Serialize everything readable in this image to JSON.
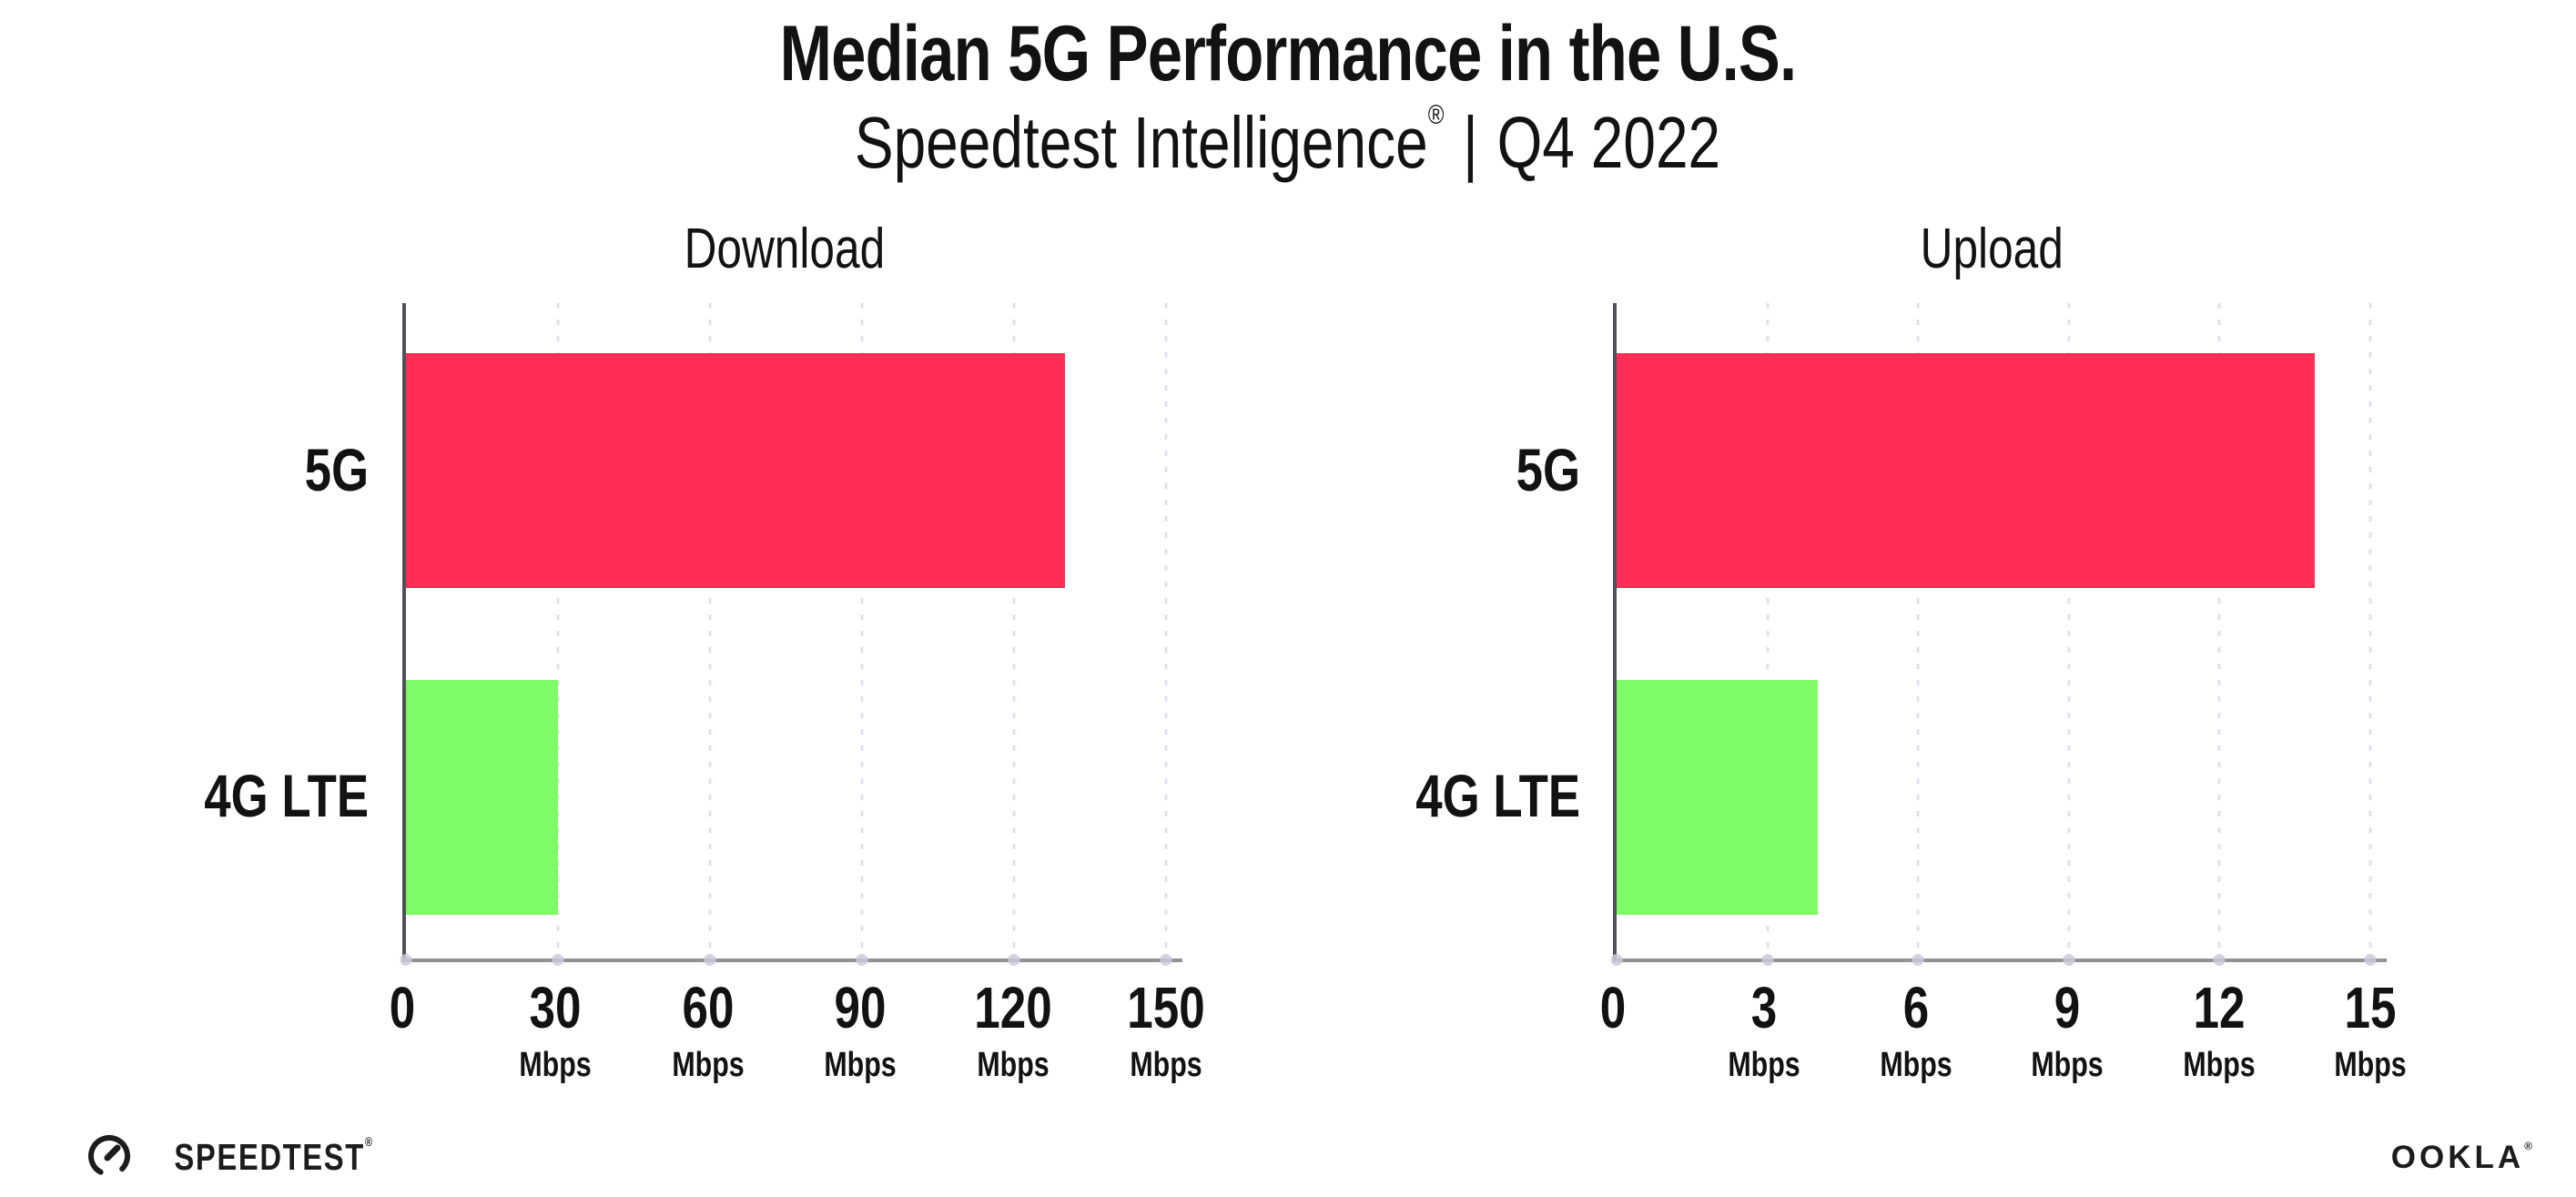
{
  "page": {
    "title": "Median 5G Performance in the U.S.",
    "subtitle_brand": "Speedtest Intelligence",
    "subtitle_reg": "®",
    "subtitle_sep": "|",
    "subtitle_period": "Q4 2022"
  },
  "colors": {
    "bar_5g": "#FF2E56",
    "bar_4g_lte": "#7DFC66",
    "gridline": "#E1E1EC",
    "x_axis": "#909096",
    "y_axis": "#50505A",
    "text": "#121212"
  },
  "chart_data": [
    {
      "type": "bar",
      "orientation": "horizontal",
      "title": "Download",
      "categories": [
        "5G",
        "4G LTE"
      ],
      "values": [
        130,
        30
      ],
      "unit": "Mbps",
      "xlim": [
        0,
        150
      ],
      "ticks": [
        0,
        30,
        60,
        90,
        120,
        150
      ],
      "tick_unit": "Mbps",
      "bar_colors": [
        "#FF2E56",
        "#7DFC66"
      ],
      "grid": "dotted-vertical",
      "legend": "none"
    },
    {
      "type": "bar",
      "orientation": "horizontal",
      "title": "Upload",
      "categories": [
        "5G",
        "4G LTE"
      ],
      "values": [
        13.9,
        4.0
      ],
      "unit": "Mbps",
      "xlim": [
        0,
        15
      ],
      "ticks": [
        0,
        3,
        6,
        9,
        12,
        15
      ],
      "tick_unit": "Mbps",
      "bar_colors": [
        "#FF2E56",
        "#7DFC66"
      ],
      "grid": "dotted-vertical",
      "legend": "none"
    }
  ],
  "footer": {
    "speedtest_logo_text": "SPEEDTEST",
    "speedtest_reg": "®",
    "speedtest_icon": "gauge-icon",
    "ookla_logo_text": "OOKLA",
    "ookla_reg": "®"
  }
}
